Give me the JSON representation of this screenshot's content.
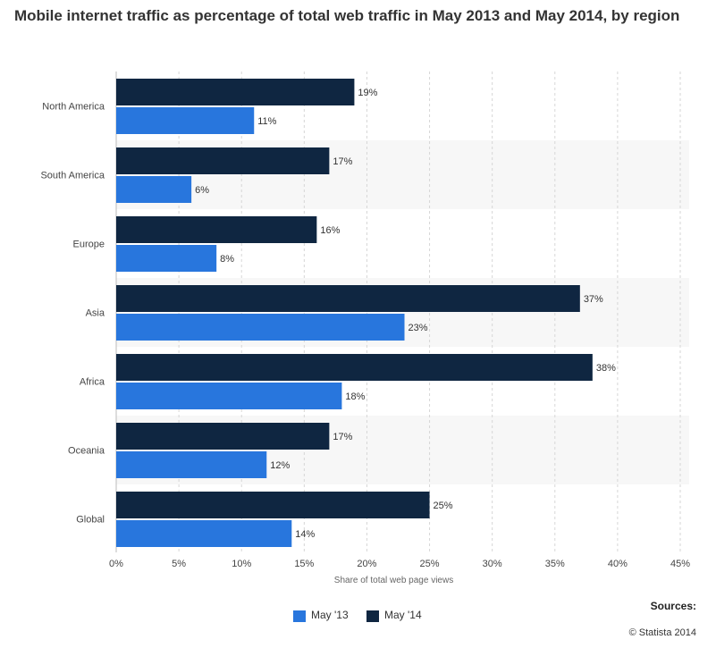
{
  "colors": {
    "may13": "#2876dd",
    "may14": "#0f2641",
    "grid": "#d6d6d6",
    "band": "#f7f7f7",
    "text": "#444444"
  },
  "footer": {
    "sources_label": "Sources:",
    "copyright": "© Statista 2014"
  },
  "chart_data": {
    "type": "bar",
    "orientation": "horizontal",
    "title": "Mobile internet traffic as percentage of total web traffic in May 2013 and May 2014, by region",
    "xlabel": "Share of total web page views",
    "ylabel": "",
    "categories": [
      "North America",
      "South America",
      "Europe",
      "Asia",
      "Africa",
      "Oceania",
      "Global"
    ],
    "series": [
      {
        "name": "May '14",
        "values": [
          19,
          17,
          16,
          37,
          38,
          17,
          25
        ],
        "labels": [
          "19%",
          "17%",
          "16%",
          "37%",
          "38%",
          "17%",
          "25%"
        ]
      },
      {
        "name": "May '13",
        "values": [
          11,
          6,
          8,
          23,
          18,
          12,
          14
        ],
        "labels": [
          "11%",
          "6%",
          "8%",
          "23%",
          "18%",
          "12%",
          "14%"
        ]
      }
    ],
    "xlim": [
      0,
      45
    ],
    "xticks": [
      0,
      5,
      10,
      15,
      20,
      25,
      30,
      35,
      40,
      45
    ],
    "xtick_labels": [
      "0%",
      "5%",
      "10%",
      "15%",
      "20%",
      "25%",
      "30%",
      "35%",
      "40%",
      "45%"
    ],
    "legend": [
      "May '13",
      "May '14"
    ],
    "legend_position": "bottom"
  }
}
